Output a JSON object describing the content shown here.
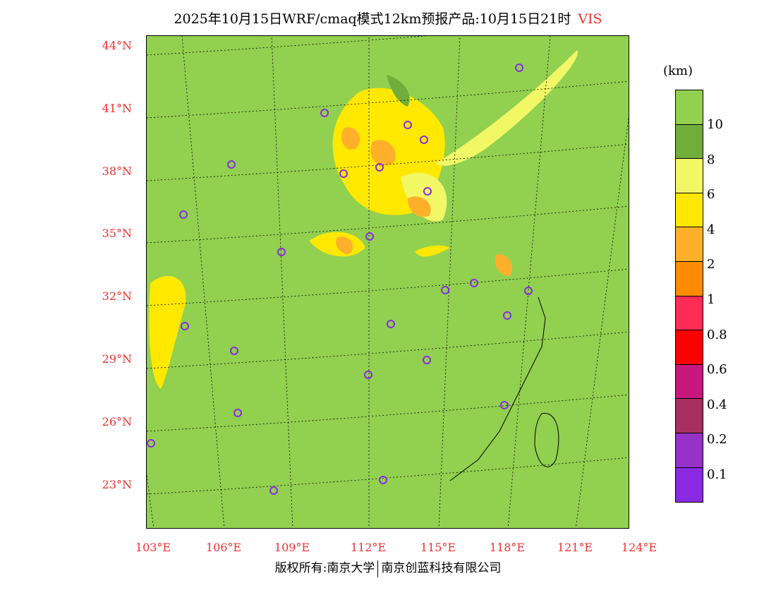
{
  "title": {
    "text": "2025年10月15日WRF/cmaq模式12km预报产品:10月15日21时",
    "variable": "VIS"
  },
  "lat_labels": [
    "44°N",
    "41°N",
    "38°N",
    "35°N",
    "32°N",
    "29°N",
    "26°N",
    "23°N"
  ],
  "lon_labels": [
    "103°E",
    "106°E",
    "109°E",
    "112°E",
    "115°E",
    "118°E",
    "121°E",
    "124°E"
  ],
  "legend": {
    "unit": "(km)",
    "labels": [
      "10",
      "8",
      "6",
      "4",
      "2",
      "1",
      "0.8",
      "0.6",
      "0.4",
      "0.2",
      "0.1"
    ],
    "colors": [
      "#92d050",
      "#70ad3a",
      "#f2f766",
      "#ffe800",
      "#ffb02a",
      "#ff8c00",
      "#ff2d55",
      "#ff0000",
      "#c8187e",
      "#a83060",
      "#9632c8",
      "#8a2be2"
    ]
  },
  "footer": {
    "left": "版权所有:南京大学",
    "right": "南京创蓝科技有限公司"
  }
}
